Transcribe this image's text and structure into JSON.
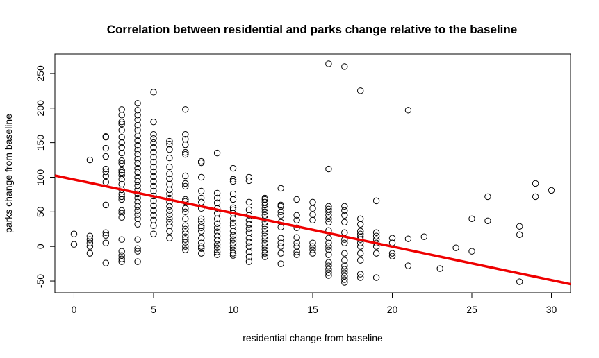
{
  "chart_data": {
    "type": "scatter",
    "title": "Correlation between residential and parks change relative to the baseline",
    "xlabel": "residential change from baseline",
    "ylabel": "parks change from baseline",
    "xlim": [
      -1.2,
      31.2
    ],
    "ylim": [
      -67,
      278
    ],
    "xticks": [
      0,
      5,
      10,
      15,
      20,
      25,
      30
    ],
    "yticks": [
      -50,
      0,
      50,
      100,
      150,
      200,
      250
    ],
    "grid": false,
    "legend": "none",
    "point_color": "#000000",
    "line_color": "#ee0000",
    "regression_line": {
      "x": [
        -1.2,
        31.2
      ],
      "y": [
        102.5,
        -54.5
      ]
    },
    "points": [
      [
        0,
        18
      ],
      [
        0,
        3
      ],
      [
        1,
        125
      ],
      [
        1,
        15
      ],
      [
        1,
        10
      ],
      [
        1,
        5
      ],
      [
        1,
        0
      ],
      [
        1,
        -10
      ],
      [
        2,
        159
      ],
      [
        2,
        158
      ],
      [
        2,
        142
      ],
      [
        2,
        130
      ],
      [
        2,
        112
      ],
      [
        2,
        108
      ],
      [
        2,
        102
      ],
      [
        2,
        93
      ],
      [
        2,
        60
      ],
      [
        2,
        20
      ],
      [
        2,
        16
      ],
      [
        2,
        5
      ],
      [
        2,
        -24
      ],
      [
        3,
        198
      ],
      [
        3,
        190
      ],
      [
        3,
        180
      ],
      [
        3,
        177
      ],
      [
        3,
        168
      ],
      [
        3,
        158
      ],
      [
        3,
        150
      ],
      [
        3,
        143
      ],
      [
        3,
        135
      ],
      [
        3,
        124
      ],
      [
        3,
        120
      ],
      [
        3,
        110
      ],
      [
        3,
        107
      ],
      [
        3,
        103
      ],
      [
        3,
        97
      ],
      [
        3,
        90
      ],
      [
        3,
        82
      ],
      [
        3,
        76
      ],
      [
        3,
        72
      ],
      [
        3,
        68
      ],
      [
        3,
        52
      ],
      [
        3,
        48
      ],
      [
        3,
        42
      ],
      [
        3,
        10
      ],
      [
        3,
        -7
      ],
      [
        3,
        -13
      ],
      [
        3,
        -18
      ],
      [
        3,
        -22
      ],
      [
        4,
        207
      ],
      [
        4,
        197
      ],
      [
        4,
        190
      ],
      [
        4,
        183
      ],
      [
        4,
        175
      ],
      [
        4,
        168
      ],
      [
        4,
        160
      ],
      [
        4,
        153
      ],
      [
        4,
        146
      ],
      [
        4,
        139
      ],
      [
        4,
        133
      ],
      [
        4,
        126
      ],
      [
        4,
        120
      ],
      [
        4,
        113
      ],
      [
        4,
        107
      ],
      [
        4,
        100
      ],
      [
        4,
        94
      ],
      [
        4,
        88
      ],
      [
        4,
        82
      ],
      [
        4,
        76
      ],
      [
        4,
        70
      ],
      [
        4,
        64
      ],
      [
        4,
        58
      ],
      [
        4,
        52
      ],
      [
        4,
        46
      ],
      [
        4,
        40
      ],
      [
        4,
        32
      ],
      [
        4,
        10
      ],
      [
        4,
        -3
      ],
      [
        4,
        -7
      ],
      [
        4,
        -22
      ],
      [
        5,
        223
      ],
      [
        5,
        180
      ],
      [
        5,
        162
      ],
      [
        5,
        156
      ],
      [
        5,
        150
      ],
      [
        5,
        143
      ],
      [
        5,
        136
      ],
      [
        5,
        129
      ],
      [
        5,
        122
      ],
      [
        5,
        115
      ],
      [
        5,
        108
      ],
      [
        5,
        101
      ],
      [
        5,
        94
      ],
      [
        5,
        87
      ],
      [
        5,
        80
      ],
      [
        5,
        73
      ],
      [
        5,
        66
      ],
      [
        5,
        59
      ],
      [
        5,
        52
      ],
      [
        5,
        45
      ],
      [
        5,
        38
      ],
      [
        5,
        30
      ],
      [
        5,
        18
      ],
      [
        6,
        152
      ],
      [
        6,
        148
      ],
      [
        6,
        140
      ],
      [
        6,
        128
      ],
      [
        6,
        115
      ],
      [
        6,
        105
      ],
      [
        6,
        98
      ],
      [
        6,
        90
      ],
      [
        6,
        82
      ],
      [
        6,
        76
      ],
      [
        6,
        70
      ],
      [
        6,
        64
      ],
      [
        6,
        58
      ],
      [
        6,
        52
      ],
      [
        6,
        46
      ],
      [
        6,
        40
      ],
      [
        6,
        35
      ],
      [
        6,
        30
      ],
      [
        6,
        22
      ],
      [
        6,
        12
      ],
      [
        7,
        198
      ],
      [
        7,
        162
      ],
      [
        7,
        155
      ],
      [
        7,
        147
      ],
      [
        7,
        136
      ],
      [
        7,
        133
      ],
      [
        7,
        102
      ],
      [
        7,
        91
      ],
      [
        7,
        87
      ],
      [
        7,
        68
      ],
      [
        7,
        65
      ],
      [
        7,
        55
      ],
      [
        7,
        50
      ],
      [
        7,
        40
      ],
      [
        7,
        30
      ],
      [
        7,
        25
      ],
      [
        7,
        20
      ],
      [
        7,
        14
      ],
      [
        7,
        10
      ],
      [
        7,
        6
      ],
      [
        7,
        0
      ],
      [
        7,
        -5
      ],
      [
        8,
        123
      ],
      [
        8,
        121
      ],
      [
        8,
        100
      ],
      [
        8,
        80
      ],
      [
        8,
        70
      ],
      [
        8,
        64
      ],
      [
        8,
        55
      ],
      [
        8,
        40
      ],
      [
        8,
        36
      ],
      [
        8,
        30
      ],
      [
        8,
        27
      ],
      [
        8,
        22
      ],
      [
        8,
        12
      ],
      [
        8,
        5
      ],
      [
        8,
        0
      ],
      [
        8,
        -3
      ],
      [
        8,
        -10
      ],
      [
        9,
        135
      ],
      [
        9,
        77
      ],
      [
        9,
        70
      ],
      [
        9,
        63
      ],
      [
        9,
        55
      ],
      [
        9,
        48
      ],
      [
        9,
        40
      ],
      [
        9,
        33
      ],
      [
        9,
        27
      ],
      [
        9,
        21
      ],
      [
        9,
        15
      ],
      [
        9,
        9
      ],
      [
        9,
        3
      ],
      [
        9,
        -2
      ],
      [
        9,
        -8
      ],
      [
        9,
        -12
      ],
      [
        10,
        113
      ],
      [
        10,
        97
      ],
      [
        10,
        94
      ],
      [
        10,
        76
      ],
      [
        10,
        68
      ],
      [
        10,
        56
      ],
      [
        10,
        53
      ],
      [
        10,
        48
      ],
      [
        10,
        40
      ],
      [
        10,
        34
      ],
      [
        10,
        30
      ],
      [
        10,
        22
      ],
      [
        10,
        16
      ],
      [
        10,
        10
      ],
      [
        10,
        5
      ],
      [
        10,
        0
      ],
      [
        10,
        -5
      ],
      [
        10,
        -10
      ],
      [
        10,
        -13
      ],
      [
        11,
        100
      ],
      [
        11,
        95
      ],
      [
        11,
        64
      ],
      [
        11,
        53
      ],
      [
        11,
        45
      ],
      [
        11,
        38
      ],
      [
        11,
        32
      ],
      [
        11,
        26
      ],
      [
        11,
        20
      ],
      [
        11,
        12
      ],
      [
        11,
        6
      ],
      [
        11,
        0
      ],
      [
        11,
        -8
      ],
      [
        11,
        -15
      ],
      [
        11,
        -22
      ],
      [
        12,
        70
      ],
      [
        12,
        68
      ],
      [
        12,
        64
      ],
      [
        12,
        60
      ],
      [
        12,
        55
      ],
      [
        12,
        50
      ],
      [
        12,
        45
      ],
      [
        12,
        40
      ],
      [
        12,
        35
      ],
      [
        12,
        30
      ],
      [
        12,
        25
      ],
      [
        12,
        20
      ],
      [
        12,
        15
      ],
      [
        12,
        10
      ],
      [
        12,
        5
      ],
      [
        12,
        0
      ],
      [
        12,
        -5
      ],
      [
        12,
        -10
      ],
      [
        12,
        -15
      ],
      [
        13,
        84
      ],
      [
        13,
        60
      ],
      [
        13,
        58
      ],
      [
        13,
        50
      ],
      [
        13,
        45
      ],
      [
        13,
        35
      ],
      [
        13,
        28
      ],
      [
        13,
        12
      ],
      [
        13,
        5
      ],
      [
        13,
        0
      ],
      [
        13,
        -10
      ],
      [
        13,
        -25
      ],
      [
        14,
        68
      ],
      [
        14,
        45
      ],
      [
        14,
        38
      ],
      [
        14,
        27
      ],
      [
        14,
        13
      ],
      [
        14,
        5
      ],
      [
        14,
        0
      ],
      [
        14,
        -8
      ],
      [
        14,
        -12
      ],
      [
        15,
        64
      ],
      [
        15,
        55
      ],
      [
        15,
        46
      ],
      [
        15,
        38
      ],
      [
        15,
        5
      ],
      [
        15,
        0
      ],
      [
        15,
        -5
      ],
      [
        15,
        -10
      ],
      [
        16,
        264
      ],
      [
        16,
        112
      ],
      [
        16,
        58
      ],
      [
        16,
        54
      ],
      [
        16,
        50
      ],
      [
        16,
        45
      ],
      [
        16,
        40
      ],
      [
        16,
        35
      ],
      [
        16,
        23
      ],
      [
        16,
        12
      ],
      [
        16,
        5
      ],
      [
        16,
        0
      ],
      [
        16,
        -5
      ],
      [
        16,
        -12
      ],
      [
        16,
        -23
      ],
      [
        16,
        -28
      ],
      [
        16,
        -33
      ],
      [
        16,
        -38
      ],
      [
        16,
        -42
      ],
      [
        17,
        260
      ],
      [
        17,
        58
      ],
      [
        17,
        52
      ],
      [
        17,
        45
      ],
      [
        17,
        35
      ],
      [
        17,
        20
      ],
      [
        17,
        10
      ],
      [
        17,
        5
      ],
      [
        17,
        -10
      ],
      [
        17,
        -20
      ],
      [
        17,
        -28
      ],
      [
        17,
        -33
      ],
      [
        17,
        -38
      ],
      [
        17,
        -43
      ],
      [
        17,
        -48
      ],
      [
        17,
        -52
      ],
      [
        18,
        225
      ],
      [
        18,
        40
      ],
      [
        18,
        32
      ],
      [
        18,
        22
      ],
      [
        18,
        18
      ],
      [
        18,
        14
      ],
      [
        18,
        10
      ],
      [
        18,
        5
      ],
      [
        18,
        0
      ],
      [
        18,
        -10
      ],
      [
        18,
        -20
      ],
      [
        18,
        -40
      ],
      [
        18,
        -45
      ],
      [
        19,
        66
      ],
      [
        19,
        20
      ],
      [
        19,
        15
      ],
      [
        19,
        10
      ],
      [
        19,
        5
      ],
      [
        19,
        0
      ],
      [
        19,
        -10
      ],
      [
        19,
        -45
      ],
      [
        20,
        12
      ],
      [
        20,
        5
      ],
      [
        20,
        -10
      ],
      [
        20,
        -14
      ],
      [
        21,
        197
      ],
      [
        21,
        11
      ],
      [
        21,
        -28
      ],
      [
        22,
        14
      ],
      [
        23,
        -32
      ],
      [
        24,
        -2
      ],
      [
        25,
        40
      ],
      [
        25,
        -7
      ],
      [
        26,
        72
      ],
      [
        26,
        37
      ],
      [
        28,
        29
      ],
      [
        28,
        17
      ],
      [
        28,
        -51
      ],
      [
        29,
        91
      ],
      [
        29,
        72
      ],
      [
        30,
        81
      ]
    ]
  }
}
